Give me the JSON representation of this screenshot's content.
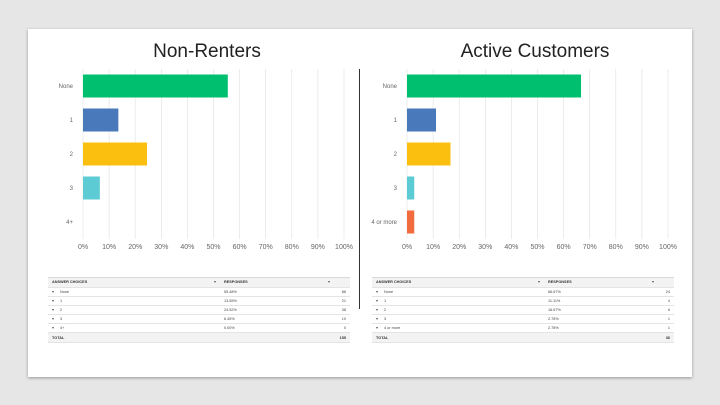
{
  "colors": {
    "green": "#00bf6f",
    "blue": "#4a79bb",
    "yellow": "#fbbf0f",
    "teal": "#5ccbd3",
    "orange": "#f26b3e",
    "grid": "#e0e0e0"
  },
  "chart_data": [
    {
      "type": "bar",
      "title": "Non-Renters",
      "orientation": "horizontal",
      "categories": [
        "None",
        "1",
        "2",
        "3",
        "4+"
      ],
      "values": [
        55.48,
        13.55,
        24.52,
        6.45,
        0.0
      ],
      "colors": [
        "#00bf6f",
        "#4a79bb",
        "#fbbf0f",
        "#5ccbd3",
        "#f26b3e"
      ],
      "xlim": [
        0,
        100
      ],
      "xticks": [
        "0%",
        "10%",
        "20%",
        "30%",
        "40%",
        "50%",
        "60%",
        "70%",
        "80%",
        "90%",
        "100%"
      ],
      "grid": true,
      "table": {
        "headers": [
          "ANSWER CHOICES",
          "RESPONSES",
          ""
        ],
        "rows": [
          {
            "choice": "None",
            "percent": "55.48%",
            "count": "86"
          },
          {
            "choice": "1",
            "percent": "13.55%",
            "count": "21"
          },
          {
            "choice": "2",
            "percent": "24.52%",
            "count": "38"
          },
          {
            "choice": "3",
            "percent": "6.45%",
            "count": "10"
          },
          {
            "choice": "4+",
            "percent": "0.00%",
            "count": "0"
          }
        ],
        "total_label": "TOTAL",
        "total_value": "155"
      }
    },
    {
      "type": "bar",
      "title": "Active Customers",
      "orientation": "horizontal",
      "categories": [
        "None",
        "1",
        "2",
        "3",
        "4 or more"
      ],
      "values": [
        66.67,
        11.11,
        16.67,
        2.78,
        2.78
      ],
      "colors": [
        "#00bf6f",
        "#4a79bb",
        "#fbbf0f",
        "#5ccbd3",
        "#f26b3e"
      ],
      "xlim": [
        0,
        100
      ],
      "xticks": [
        "0%",
        "10%",
        "20%",
        "30%",
        "40%",
        "50%",
        "60%",
        "70%",
        "80%",
        "90%",
        "100%"
      ],
      "grid": true,
      "table": {
        "headers": [
          "ANSWER CHOICES",
          "RESPONSES",
          ""
        ],
        "rows": [
          {
            "choice": "None",
            "percent": "66.67%",
            "count": "24"
          },
          {
            "choice": "1",
            "percent": "11.11%",
            "count": "4"
          },
          {
            "choice": "2",
            "percent": "16.67%",
            "count": "6"
          },
          {
            "choice": "3",
            "percent": "2.78%",
            "count": "1"
          },
          {
            "choice": "4 or more",
            "percent": "2.78%",
            "count": "1"
          }
        ],
        "total_label": "TOTAL",
        "total_value": "36"
      }
    }
  ]
}
